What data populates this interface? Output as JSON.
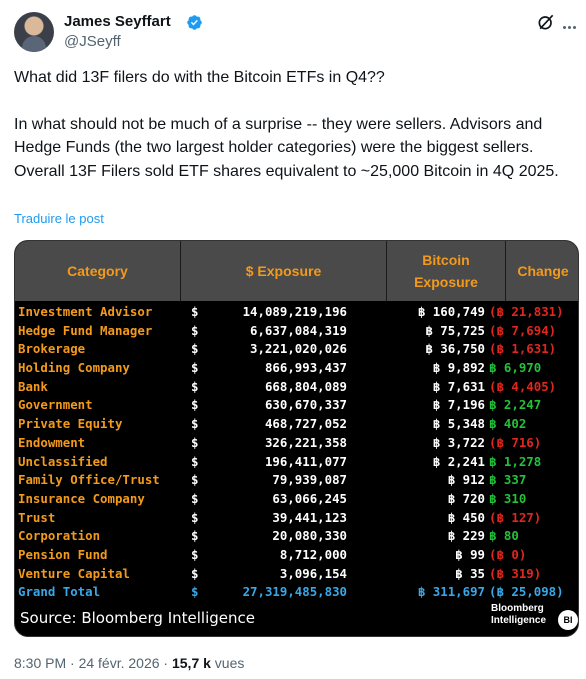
{
  "author": {
    "name": "James Seyffart",
    "handle": "@JSeyff"
  },
  "tweet": {
    "line1": "What did 13F filers do with the Bitcoin ETFs in Q4??",
    "para2": "In what should not be much of a surprise -- they were sellers. Advisors and Hedge Funds (the two largest holder categories) were the biggest sellers. Overall 13F Filers sold ETF shares equivalent to ~25,000 Bitcoin in 4Q 2025.",
    "translate_link": "Traduire le post"
  },
  "table": {
    "headers": {
      "category": "Category",
      "exposure": "$ Exposure",
      "btc_line1": "Bitcoin",
      "btc_line2": "Exposure",
      "change": "Change"
    },
    "rows": [
      {
        "category": "Investment Advisor",
        "dollar": "$",
        "exposure": "14,089,219,196",
        "btc": "฿ 160,749",
        "change": "(฿ 21,831)",
        "sign": "neg"
      },
      {
        "category": "Hedge Fund Manager",
        "dollar": "$",
        "exposure": "6,637,084,319",
        "btc": "฿ 75,725",
        "change": "(฿ 7,694)",
        "sign": "neg"
      },
      {
        "category": "Brokerage",
        "dollar": "$",
        "exposure": "3,221,020,026",
        "btc": "฿ 36,750",
        "change": "(฿ 1,631)",
        "sign": "neg"
      },
      {
        "category": "Holding Company",
        "dollar": "$",
        "exposure": "866,993,437",
        "btc": "฿ 9,892",
        "change": "฿ 6,970",
        "sign": "pos"
      },
      {
        "category": "Bank",
        "dollar": "$",
        "exposure": "668,804,089",
        "btc": "฿ 7,631",
        "change": "(฿ 4,405)",
        "sign": "neg"
      },
      {
        "category": "Government",
        "dollar": "$",
        "exposure": "630,670,337",
        "btc": "฿ 7,196",
        "change": "฿ 2,247",
        "sign": "pos"
      },
      {
        "category": "Private Equity",
        "dollar": "$",
        "exposure": "468,727,052",
        "btc": "฿ 5,348",
        "change": "฿ 402",
        "sign": "pos"
      },
      {
        "category": "Endowment",
        "dollar": "$",
        "exposure": "326,221,358",
        "btc": "฿ 3,722",
        "change": "(฿ 716)",
        "sign": "neg"
      },
      {
        "category": "Unclassified",
        "dollar": "$",
        "exposure": "196,411,077",
        "btc": "฿ 2,241",
        "change": "฿ 1,278",
        "sign": "pos"
      },
      {
        "category": "Family Office/Trust",
        "dollar": "$",
        "exposure": "79,939,087",
        "btc": "฿ 912",
        "change": "฿ 337",
        "sign": "pos"
      },
      {
        "category": "Insurance Company",
        "dollar": "$",
        "exposure": "63,066,245",
        "btc": "฿ 720",
        "change": "฿ 310",
        "sign": "pos"
      },
      {
        "category": "Trust",
        "dollar": "$",
        "exposure": "39,441,123",
        "btc": "฿ 450",
        "change": "(฿ 127)",
        "sign": "neg"
      },
      {
        "category": "Corporation",
        "dollar": "$",
        "exposure": "20,080,330",
        "btc": "฿ 229",
        "change": "฿ 80",
        "sign": "pos"
      },
      {
        "category": "Pension Fund",
        "dollar": "$",
        "exposure": "8,712,000",
        "btc": "฿ 99",
        "change": "(฿ 0)",
        "sign": "neg"
      },
      {
        "category": "Venture Capital",
        "dollar": "$",
        "exposure": "3,096,154",
        "btc": "฿ 35",
        "change": "(฿ 319)",
        "sign": "neg"
      }
    ],
    "total": {
      "category": "Grand Total",
      "dollar": "$",
      "exposure": "27,319,485,830",
      "btc": "฿ 311,697",
      "change": "(฿ 25,098)"
    },
    "source": "Source: Bloomberg Intelligence",
    "brand_line1": "Bloomberg",
    "brand_line2": "Intelligence",
    "brand_badge": "BI"
  },
  "meta": {
    "time": "8:30 PM · 24 févr. 2026 · ",
    "views_count": "15,7 k",
    "views_label": " vues"
  },
  "colors": {
    "accent": "#1d9bf0",
    "header_orange": "#f39a1c",
    "negative": "#e0261f",
    "positive": "#23c23a",
    "total_blue": "#39a8e6"
  },
  "icons": [
    "verified-badge-icon",
    "grok-icon",
    "more-options-icon"
  ]
}
